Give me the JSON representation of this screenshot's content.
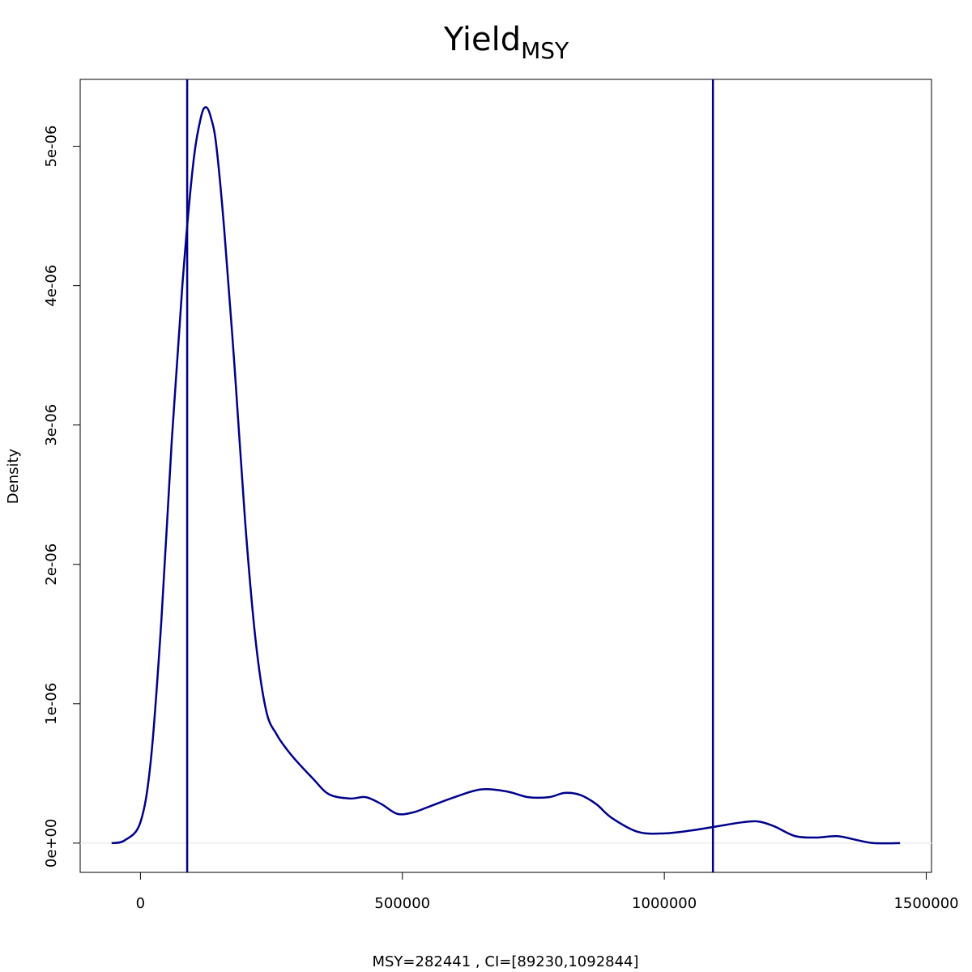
{
  "chart_data": {
    "type": "line",
    "title": "Yield",
    "title_subscript": "MSY",
    "xlabel": "MSY=282441 , CI=[89230,1092844]",
    "ylabel": "Density",
    "xlim": [
      -115000,
      1510000
    ],
    "ylim": [
      -2.1e-07,
      5.48e-06
    ],
    "x_ticks": [
      0,
      500000,
      1000000,
      1500000
    ],
    "x_tick_labels": [
      "0",
      "500000",
      "1000000",
      "1500000"
    ],
    "y_ticks": [
      0,
      1e-06,
      2e-06,
      3e-06,
      4e-06,
      5e-06
    ],
    "y_tick_labels": [
      "0e+00",
      "1e-06",
      "2e-06",
      "3e-06",
      "4e-06",
      "5e-06"
    ],
    "grid": false,
    "line_color": "#00008B",
    "baseline_color": "#f0f0f0",
    "vlines": [
      89230,
      1092844
    ],
    "series": [
      {
        "x": [
          -55000,
          -30000,
          0,
          20000,
          40000,
          60000,
          80000,
          100000,
          115000,
          125000,
          135000,
          145000,
          160000,
          180000,
          200000,
          220000,
          240000,
          260000,
          280000,
          300000,
          330000,
          360000,
          400000,
          430000,
          460000,
          490000,
          520000,
          550000,
          600000,
          650000,
          700000,
          740000,
          780000,
          810000,
          840000,
          870000,
          900000,
          950000,
          1000000,
          1050000,
          1100000,
          1150000,
          1180000,
          1210000,
          1250000,
          1290000,
          1330000,
          1370000,
          1400000,
          1450000
        ],
        "y": [
          0.0,
          2e-08,
          1.5e-07,
          6e-07,
          1.6e-06,
          2.9e-06,
          4e-06,
          4.85e-06,
          5.2e-06,
          5.28e-06,
          5.2e-06,
          5e-06,
          4.4e-06,
          3.4e-06,
          2.3e-06,
          1.45e-06,
          9.5e-07,
          7.8e-07,
          6.7e-07,
          5.8e-07,
          4.6e-07,
          3.5e-07,
          3.2e-07,
          3.3e-07,
          2.8e-07,
          2.1e-07,
          2.2e-07,
          2.6e-07,
          3.3e-07,
          3.85e-07,
          3.7e-07,
          3.3e-07,
          3.3e-07,
          3.6e-07,
          3.45e-07,
          2.8e-07,
          1.8e-07,
          8e-08,
          7e-08,
          9e-08,
          1.2e-07,
          1.5e-07,
          1.55e-07,
          1.2e-07,
          5e-08,
          4e-08,
          5e-08,
          2e-08,
          0.0,
          0.0
        ]
      }
    ]
  }
}
